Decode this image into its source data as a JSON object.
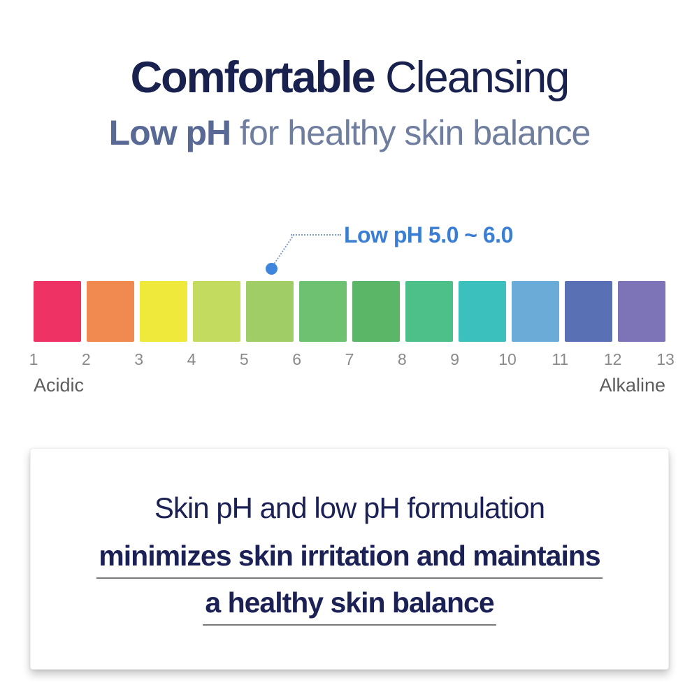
{
  "colors": {
    "background": "#ffffff",
    "title_navy": "#19224f",
    "subtitle_steel_bold": "#576994",
    "subtitle_steel_light": "#6f7e9f",
    "annotation_blue": "#3a7ed4",
    "marker_dot_blue": "#3e86dd",
    "leader_line_blue": "#7d9fcc",
    "tick_gray": "#8a8a8a",
    "scale_label_gray": "#5c5c5c",
    "info_text_navy": "#1b2155",
    "underline_gray": "#7a7a7a"
  },
  "header": {
    "title": {
      "bold": "Comfortable",
      "light": "Cleansing"
    },
    "subtitle": {
      "bold": "Low pH",
      "light": "for healthy skin balance"
    }
  },
  "annotation": {
    "label": "Low pH 5.0 ~ 6.0",
    "marked_range": "pH 5.0 to 6.0"
  },
  "ph_scale": {
    "left_label": "Acidic",
    "right_label": "Alkaline",
    "ticks": [
      "1",
      "2",
      "3",
      "4",
      "5",
      "6",
      "7",
      "8",
      "9",
      "10",
      "11",
      "12",
      "13"
    ],
    "swatches": [
      {
        "ph_from": 1,
        "ph_to": 2,
        "color": "#ee3263"
      },
      {
        "ph_from": 2,
        "ph_to": 3,
        "color": "#f08a50"
      },
      {
        "ph_from": 3,
        "ph_to": 4,
        "color": "#efe93b"
      },
      {
        "ph_from": 4,
        "ph_to": 5,
        "color": "#c3db5f"
      },
      {
        "ph_from": 5,
        "ph_to": 6,
        "color": "#a0cd66"
      },
      {
        "ph_from": 6,
        "ph_to": 7,
        "color": "#6ec170"
      },
      {
        "ph_from": 7,
        "ph_to": 8,
        "color": "#5bb668"
      },
      {
        "ph_from": 8,
        "ph_to": 9,
        "color": "#4dc08a"
      },
      {
        "ph_from": 9,
        "ph_to": 10,
        "color": "#3cc0bd"
      },
      {
        "ph_from": 10,
        "ph_to": 11,
        "color": "#6babd8"
      },
      {
        "ph_from": 11,
        "ph_to": 12,
        "color": "#5a70b4"
      },
      {
        "ph_from": 12,
        "ph_to": 13,
        "color": "#7d74b8"
      }
    ]
  },
  "info_box": {
    "line1": "Skin pH and low pH formulation",
    "line2": "minimizes skin irritation and maintains",
    "line3": "a healthy skin balance"
  }
}
